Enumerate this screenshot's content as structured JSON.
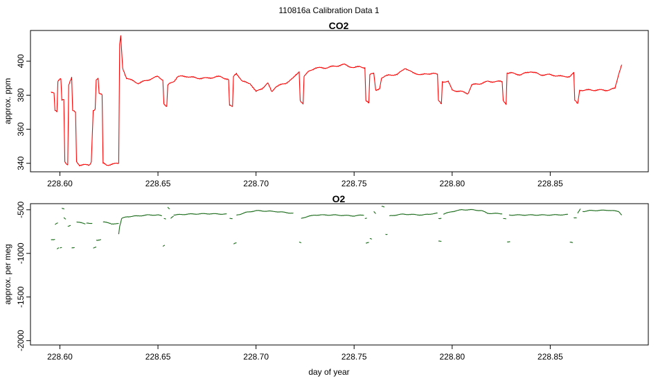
{
  "figure": {
    "title": "110816a   Calibration Data 1"
  },
  "chart_data": [
    {
      "type": "line",
      "title": "CO2",
      "xlabel": "",
      "ylabel": "approx. ppm",
      "xlim": [
        228.585,
        228.9
      ],
      "ylim": [
        335,
        418
      ],
      "xticks": [
        "228.60",
        "228.65",
        "228.70",
        "228.75",
        "228.80",
        "228.85"
      ],
      "xtick_values": [
        228.6,
        228.65,
        228.7,
        228.75,
        228.8,
        228.85
      ],
      "yticks": [
        "340",
        "360",
        "380",
        "400"
      ],
      "ytick_values": [
        340,
        360,
        380,
        400
      ],
      "grid": false,
      "color": "#ff0000",
      "series": [
        {
          "points": [
            [
              228.5955,
              382
            ],
            [
              228.597,
              381
            ],
            [
              228.5975,
              371
            ],
            [
              228.5985,
              370
            ],
            [
              228.599,
              388
            ],
            [
              228.6005,
              390
            ],
            [
              228.601,
              377
            ],
            [
              228.602,
              378
            ],
            [
              228.6025,
              341
            ],
            [
              228.604,
              339
            ],
            [
              228.6045,
              386
            ],
            [
              228.606,
              390
            ],
            [
              228.6065,
              371
            ],
            [
              228.608,
              370
            ],
            [
              228.6085,
              341
            ],
            [
              228.61,
              339
            ],
            [
              228.615,
              339
            ],
            [
              228.616,
              341
            ],
            [
              228.617,
              371
            ],
            [
              228.618,
              372
            ],
            [
              228.6185,
              389
            ],
            [
              228.6195,
              390
            ],
            [
              228.62,
              381
            ],
            [
              228.6215,
              380
            ],
            [
              228.622,
              340
            ],
            [
              228.624,
              339
            ],
            [
              228.63,
              340
            ],
            [
              228.6305,
              410
            ],
            [
              228.631,
              415
            ],
            [
              228.632,
              396
            ],
            [
              228.634,
              390
            ],
            [
              228.638,
              388
            ],
            [
              228.64,
              387
            ],
            [
              228.645,
              389
            ],
            [
              228.65,
              391
            ],
            [
              228.6525,
              389
            ],
            [
              228.653,
              375
            ],
            [
              228.6545,
              373
            ],
            [
              228.655,
              386
            ],
            [
              228.658,
              388
            ],
            [
              228.66,
              391
            ],
            [
              228.665,
              391
            ],
            [
              228.67,
              390
            ],
            [
              228.675,
              390
            ],
            [
              228.682,
              391
            ],
            [
              228.686,
              389
            ],
            [
              228.6865,
              374
            ],
            [
              228.688,
              373
            ],
            [
              228.6885,
              391
            ],
            [
              228.69,
              393
            ],
            [
              228.693,
              388
            ],
            [
              228.697,
              387
            ],
            [
              228.7,
              382
            ],
            [
              228.703,
              384
            ],
            [
              228.706,
              387
            ],
            [
              228.708,
              382
            ],
            [
              228.71,
              385
            ],
            [
              228.715,
              387
            ],
            [
              228.719,
              390
            ],
            [
              228.722,
              394
            ],
            [
              228.7225,
              377
            ],
            [
              228.724,
              375
            ],
            [
              228.7245,
              391
            ],
            [
              228.727,
              394
            ],
            [
              228.73,
              396
            ],
            [
              228.735,
              396
            ],
            [
              228.74,
              397
            ],
            [
              228.745,
              398
            ],
            [
              228.75,
              396
            ],
            [
              228.753,
              397
            ],
            [
              228.7555,
              396
            ],
            [
              228.756,
              377
            ],
            [
              228.7575,
              375
            ],
            [
              228.758,
              392
            ],
            [
              228.76,
              393
            ],
            [
              228.761,
              383
            ],
            [
              228.763,
              384
            ],
            [
              228.764,
              390
            ],
            [
              228.768,
              392
            ],
            [
              228.772,
              392
            ],
            [
              228.776,
              396
            ],
            [
              228.78,
              393
            ],
            [
              228.785,
              392
            ],
            [
              228.79,
              393
            ],
            [
              228.7925,
              392
            ],
            [
              228.793,
              377
            ],
            [
              228.7945,
              375
            ],
            [
              228.795,
              388
            ],
            [
              228.798,
              388
            ],
            [
              228.8,
              383
            ],
            [
              228.805,
              382
            ],
            [
              228.808,
              381
            ],
            [
              228.81,
              386
            ],
            [
              228.815,
              387
            ],
            [
              228.818,
              388
            ],
            [
              228.8255,
              388
            ],
            [
              228.826,
              377
            ],
            [
              228.8275,
              375
            ],
            [
              228.828,
              393
            ],
            [
              228.83,
              393
            ],
            [
              228.835,
              392
            ],
            [
              228.84,
              394
            ],
            [
              228.845,
              392
            ],
            [
              228.85,
              392
            ],
            [
              228.856,
              391
            ],
            [
              228.86,
              391
            ],
            [
              228.862,
              393
            ],
            [
              228.8625,
              377
            ],
            [
              228.864,
              375
            ],
            [
              228.865,
              383
            ],
            [
              228.87,
              383
            ],
            [
              228.875,
              383
            ],
            [
              228.88,
              383
            ],
            [
              228.883,
              384
            ],
            [
              228.885,
              393
            ],
            [
              228.8865,
              398
            ]
          ]
        }
      ]
    },
    {
      "type": "line",
      "title": "O2",
      "xlabel": "day of year",
      "ylabel": "approx. per meg",
      "xlim": [
        228.585,
        228.9
      ],
      "ylim": [
        -2050,
        -430
      ],
      "xticks": [
        "228.60",
        "228.65",
        "228.70",
        "228.75",
        "228.80",
        "228.85"
      ],
      "xtick_values": [
        228.6,
        228.65,
        228.7,
        228.75,
        228.8,
        228.85
      ],
      "yticks": [
        "-500",
        "-1000",
        "-1500",
        "-2000"
      ],
      "ytick_values": [
        -500,
        -1000,
        -1500,
        -2000
      ],
      "grid": false,
      "color": "#1a6b1a",
      "segments": [
        [
          [
            228.5955,
            -840
          ],
          [
            228.5975,
            -840
          ]
        ],
        [
          [
            228.5975,
            -670
          ],
          [
            228.599,
            -650
          ]
        ],
        [
          [
            228.5985,
            -950
          ],
          [
            228.5995,
            -930
          ]
        ],
        [
          [
            228.6,
            -940
          ],
          [
            228.601,
            -935
          ]
        ],
        [
          [
            228.601,
            -480
          ],
          [
            228.6022,
            -490
          ]
        ],
        [
          [
            228.602,
            -590
          ],
          [
            228.603,
            -610
          ]
        ],
        [
          [
            228.604,
            -690
          ],
          [
            228.6055,
            -680
          ]
        ],
        [
          [
            228.606,
            -940
          ],
          [
            228.6075,
            -930
          ]
        ],
        [
          [
            228.6085,
            -640
          ],
          [
            228.613,
            -660
          ]
        ],
        [
          [
            228.6135,
            -650
          ],
          [
            228.6165,
            -655
          ]
        ],
        [
          [
            228.617,
            -940
          ],
          [
            228.6185,
            -930
          ]
        ],
        [
          [
            228.6185,
            -850
          ],
          [
            228.621,
            -840
          ]
        ],
        [
          [
            228.622,
            -640
          ],
          [
            228.626,
            -655
          ]
        ],
        [
          [
            228.626,
            -660
          ],
          [
            228.63,
            -660
          ]
        ],
        [
          [
            228.63,
            -780
          ],
          [
            228.6305,
            -690
          ],
          [
            228.6315,
            -600
          ],
          [
            228.634,
            -580
          ],
          [
            228.64,
            -570
          ],
          [
            228.645,
            -560
          ],
          [
            228.65,
            -560
          ],
          [
            228.652,
            -570
          ]
        ],
        [
          [
            228.6525,
            -920
          ],
          [
            228.6535,
            -900
          ]
        ],
        [
          [
            228.653,
            -600
          ],
          [
            228.654,
            -610
          ]
        ],
        [
          [
            228.655,
            -470
          ],
          [
            228.656,
            -490
          ]
        ],
        [
          [
            228.6565,
            -600
          ],
          [
            228.658,
            -570
          ]
        ],
        [
          [
            228.658,
            -560
          ],
          [
            228.665,
            -550
          ],
          [
            228.675,
            -545
          ],
          [
            228.685,
            -550
          ]
        ],
        [
          [
            228.6865,
            -600
          ],
          [
            228.688,
            -600
          ]
        ],
        [
          [
            228.6885,
            -890
          ],
          [
            228.69,
            -880
          ]
        ],
        [
          [
            228.69,
            -560
          ],
          [
            228.692,
            -550
          ],
          [
            228.695,
            -530
          ],
          [
            228.7,
            -510
          ],
          [
            228.71,
            -520
          ],
          [
            228.719,
            -540
          ]
        ],
        [
          [
            228.722,
            -870
          ],
          [
            228.723,
            -880
          ]
        ],
        [
          [
            228.723,
            -600
          ],
          [
            228.724,
            -590
          ],
          [
            228.73,
            -560
          ],
          [
            228.74,
            -560
          ],
          [
            228.75,
            -570
          ],
          [
            228.755,
            -560
          ]
        ],
        [
          [
            228.7555,
            -600
          ],
          [
            228.7565,
            -600
          ]
        ],
        [
          [
            228.756,
            -880
          ],
          [
            228.7575,
            -870
          ]
        ],
        [
          [
            228.758,
            -830
          ],
          [
            228.759,
            -840
          ]
        ],
        [
          [
            228.76,
            -520
          ],
          [
            228.761,
            -540
          ]
        ],
        [
          [
            228.764,
            -460
          ],
          [
            228.7655,
            -470
          ]
        ],
        [
          [
            228.766,
            -780
          ],
          [
            228.767,
            -780
          ]
        ],
        [
          [
            228.768,
            -570
          ],
          [
            228.775,
            -550
          ],
          [
            228.785,
            -560
          ],
          [
            228.79,
            -545
          ],
          [
            228.7925,
            -540
          ]
        ],
        [
          [
            228.793,
            -600
          ],
          [
            228.7945,
            -600
          ]
        ],
        [
          [
            228.793,
            -860
          ],
          [
            228.7945,
            -860
          ]
        ],
        [
          [
            228.7955,
            -550
          ],
          [
            228.8,
            -520
          ],
          [
            228.805,
            -500
          ],
          [
            228.81,
            -500
          ],
          [
            228.815,
            -510
          ],
          [
            228.818,
            -540
          ],
          [
            228.8255,
            -545
          ]
        ],
        [
          [
            228.826,
            -600
          ],
          [
            228.8275,
            -600
          ]
        ],
        [
          [
            228.828,
            -870
          ],
          [
            228.8295,
            -870
          ]
        ],
        [
          [
            228.829,
            -560
          ],
          [
            228.835,
            -560
          ],
          [
            228.84,
            -560
          ],
          [
            228.85,
            -560
          ],
          [
            228.859,
            -555
          ]
        ],
        [
          [
            228.86,
            -870
          ],
          [
            228.8615,
            -880
          ]
        ],
        [
          [
            228.862,
            -590
          ],
          [
            228.8635,
            -590
          ]
        ],
        [
          [
            228.864,
            -540
          ],
          [
            228.8655,
            -490
          ]
        ],
        [
          [
            228.8665,
            -520
          ],
          [
            228.87,
            -510
          ],
          [
            228.88,
            -505
          ],
          [
            228.885,
            -520
          ],
          [
            228.8865,
            -560
          ]
        ]
      ]
    }
  ]
}
